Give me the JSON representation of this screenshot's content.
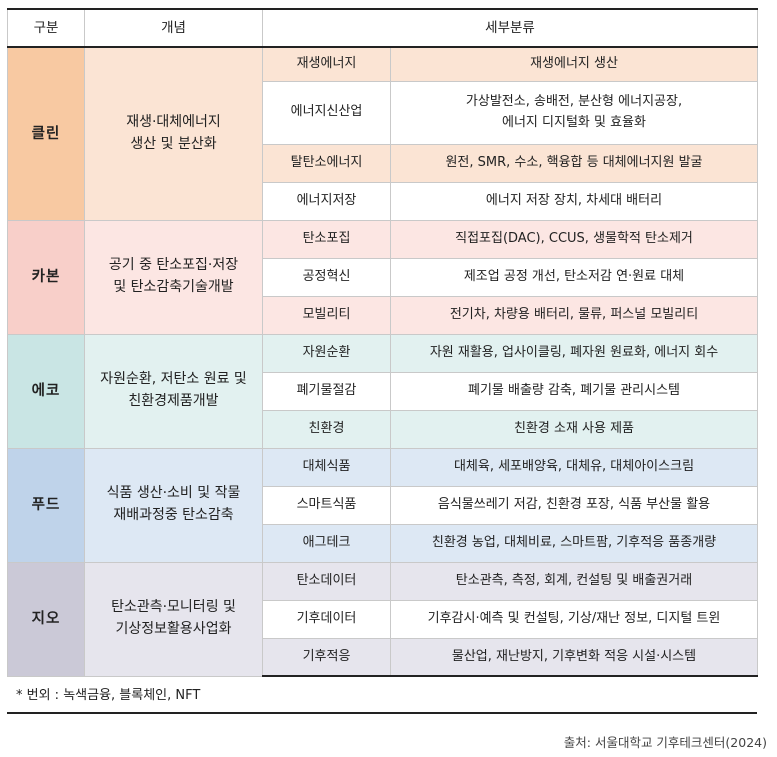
{
  "header": {
    "category": "구분",
    "concept": "개념",
    "detail": "세부분류"
  },
  "groups": [
    {
      "category": "클린",
      "concept_lines": [
        "재생·대체에너지",
        "생산 및 분산화"
      ],
      "colors": {
        "main": "#f8c9a2",
        "sub": "#fbe4d4",
        "alt": "#fff3ea"
      },
      "rows": [
        {
          "sub": "재생에너지",
          "detail_lines": [
            "재생에너지 생산"
          ]
        },
        {
          "sub": "에너지신산업",
          "detail_lines": [
            "가상발전소, 송배전, 분산형 에너지공장,",
            "에너지 디지털화 및 효율화"
          ]
        },
        {
          "sub": "탈탄소에너지",
          "detail_lines": [
            "원전, SMR, 수소, 핵융합 등 대체에너지원 발굴"
          ]
        },
        {
          "sub": "에너지저장",
          "detail_lines": [
            "에너지 저장 장치, 차세대 배터리"
          ]
        }
      ]
    },
    {
      "category": "카본",
      "concept_lines": [
        "공기 중 탄소포집·저장",
        "및 탄소감축기술개발"
      ],
      "colors": {
        "main": "#f8cfc9",
        "sub": "#fce6e3",
        "alt": "#fff3f1"
      },
      "rows": [
        {
          "sub": "탄소포집",
          "detail_lines": [
            "직접포집(DAC), CCUS, 생물학적 탄소제거"
          ]
        },
        {
          "sub": "공정혁신",
          "detail_lines": [
            "제조업 공정 개선, 탄소저감 연·원료 대체"
          ]
        },
        {
          "sub": "모빌리티",
          "detail_lines": [
            "전기차, 차량용 배터리, 물류, 퍼스널 모빌리티"
          ]
        }
      ]
    },
    {
      "category": "에코",
      "concept_lines": [
        "자원순환, 저탄소 원료 및",
        "친환경제품개발"
      ],
      "colors": {
        "main": "#c9e5e4",
        "sub": "#e2f1f0",
        "alt": "#f2f9f8"
      },
      "rows": [
        {
          "sub": "자원순환",
          "detail_lines": [
            "자원 재활용, 업사이클링, 폐자원 원료화, 에너지 회수"
          ]
        },
        {
          "sub": "폐기물절감",
          "detail_lines": [
            "폐기물 배출량 감축, 폐기물 관리시스템"
          ]
        },
        {
          "sub": "친환경",
          "detail_lines": [
            "친환경 소재 사용 제품"
          ]
        }
      ]
    },
    {
      "category": "푸드",
      "concept_lines": [
        "식품 생산·소비 및 작물",
        "재배과정중 탄소감축"
      ],
      "colors": {
        "main": "#bfd3ea",
        "sub": "#dde8f4",
        "alt": "#eef4fa"
      },
      "rows": [
        {
          "sub": "대체식품",
          "detail_lines": [
            "대체육, 세포배양육, 대체유, 대체아이스크림"
          ]
        },
        {
          "sub": "스마트식품",
          "detail_lines": [
            "음식물쓰레기 저감, 친환경 포장, 식품 부산물 활용"
          ]
        },
        {
          "sub": "애그테크",
          "detail_lines": [
            "친환경 농업, 대체비료, 스마트팜, 기후적응 품종개량"
          ]
        }
      ]
    },
    {
      "category": "지오",
      "concept_lines": [
        "탄소관측·모니터링 및",
        "기상정보활용사업화"
      ],
      "colors": {
        "main": "#cbc9d7",
        "sub": "#e6e5ed",
        "alt": "#f3f2f6"
      },
      "rows": [
        {
          "sub": "탄소데이터",
          "detail_lines": [
            "탄소관측, 측정, 회계, 컨설팅 및 배출권거래"
          ]
        },
        {
          "sub": "기후데이터",
          "detail_lines": [
            "기후감시·예측 및 컨설팅, 기상/재난 정보, 디지털 트윈"
          ]
        },
        {
          "sub": "기후적응",
          "detail_lines": [
            "물산업, 재난방지, 기후변화 적응 시설·시스템"
          ]
        }
      ]
    }
  ],
  "footnote": "* 번외 : 녹색금융, 블록체인, NFT",
  "source": "출처: 서울대학교 기후테크센터(2024)"
}
